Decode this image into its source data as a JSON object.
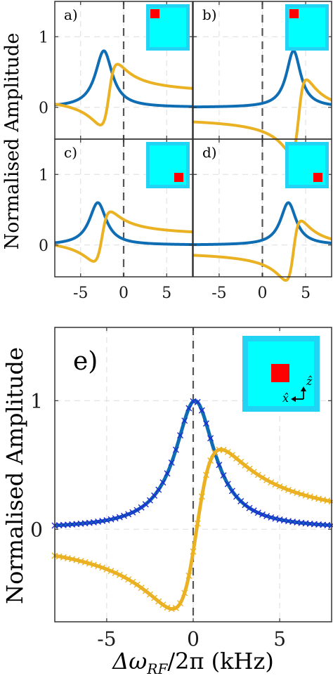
{
  "figure": {
    "ylabel": "Normalised Amplitude",
    "xlabel_main": "Δω",
    "xlabel_sub": "RF",
    "xlabel_rest": "/2π (kHz)",
    "axis_symbols": {
      "x": "x̂",
      "z": "ẑ"
    }
  },
  "colors": {
    "blue": "#0f6db3",
    "yellow": "#eab223",
    "dark_blue": "#1f2bd1",
    "cyan_outer": "#21d4f3",
    "cyan_inner": "#00ffff",
    "red": "#ff0000",
    "grid": "#dddddd",
    "zero_line": "#555555"
  },
  "chart_data": [
    {
      "panel": "a)",
      "type": "line",
      "xlim": [
        -8,
        8
      ],
      "ylim": [
        -0.45,
        1.5
      ],
      "xticks": [
        -5,
        0,
        5
      ],
      "yticks": [
        0,
        1
      ],
      "xtick_labels": [],
      "ytick_labels": [
        "0",
        "1"
      ],
      "inset": "red square top-right",
      "series": [
        {
          "shape": "absorptive",
          "center": -2.3,
          "width": 1.2,
          "amp": 0.8,
          "color": "blue"
        },
        {
          "shape": "dispersive",
          "center": -1.7,
          "width": 1.0,
          "amp": 0.43,
          "offset": 0.18,
          "color": "yellow"
        }
      ]
    },
    {
      "panel": "b)",
      "type": "line",
      "xlim": [
        -8,
        8
      ],
      "ylim": [
        -0.45,
        1.5
      ],
      "xticks": [
        -5,
        0,
        5
      ],
      "yticks": [
        0,
        1
      ],
      "xtick_labels": [],
      "ytick_labels": [],
      "inset": "red square top-right",
      "series": [
        {
          "shape": "absorptive",
          "center": 3.6,
          "width": 1.0,
          "amp": 0.8,
          "color": "blue"
        },
        {
          "shape": "dispersive",
          "center": 4.2,
          "width": 0.9,
          "amp": 0.52,
          "offset": -0.13,
          "color": "yellow"
        }
      ]
    },
    {
      "panel": "c)",
      "type": "line",
      "xlim": [
        -8,
        8
      ],
      "ylim": [
        -0.45,
        1.5
      ],
      "xticks": [
        -5,
        0,
        5
      ],
      "yticks": [
        0,
        1
      ],
      "xtick_labels": [
        "-5",
        "0",
        "5"
      ],
      "ytick_labels": [
        "0",
        "1"
      ],
      "inset": "red square bottom-right",
      "series": [
        {
          "shape": "absorptive",
          "center": -3.0,
          "width": 1.2,
          "amp": 0.6,
          "color": "blue"
        },
        {
          "shape": "dispersive",
          "center": -2.5,
          "width": 1.0,
          "amp": 0.35,
          "offset": 0.12,
          "color": "yellow"
        }
      ]
    },
    {
      "panel": "d)",
      "type": "line",
      "xlim": [
        -8,
        8
      ],
      "ylim": [
        -0.45,
        1.5
      ],
      "xticks": [
        -5,
        0,
        5
      ],
      "yticks": [
        0,
        1
      ],
      "xtick_labels": [
        "-5",
        "0",
        "5"
      ],
      "ytick_labels": [],
      "inset": "red square bottom-right",
      "series": [
        {
          "shape": "absorptive",
          "center": 3.0,
          "width": 1.1,
          "amp": 0.6,
          "color": "blue"
        },
        {
          "shape": "dispersive",
          "center": 3.6,
          "width": 0.9,
          "amp": 0.42,
          "offset": -0.08,
          "color": "yellow"
        }
      ]
    },
    {
      "panel": "e)",
      "type": "line+scatter",
      "xlim": [
        -8,
        8
      ],
      "ylim": [
        -0.72,
        1.57
      ],
      "xticks": [
        -5,
        0,
        5
      ],
      "yticks": [
        0,
        1
      ],
      "xtick_labels": [
        "-5",
        "0",
        "5"
      ],
      "ytick_labels": [
        "0",
        "1"
      ],
      "inset": "red square center-right with x̂ and ẑ axis arrows",
      "series": [
        {
          "shape": "absorptive",
          "center": 0.1,
          "width": 1.4,
          "amp": 1.0,
          "color": "blue",
          "fit_line": true
        },
        {
          "shape": "absorptive",
          "center": 0.1,
          "width": 1.4,
          "amp": 1.0,
          "color": "dark_blue",
          "markers": "x"
        },
        {
          "shape": "dispersive",
          "center": 0.2,
          "width": 1.4,
          "amp": 0.62,
          "offset": 0.0,
          "color": "yellow",
          "fit_line": true
        },
        {
          "shape": "dispersive",
          "center": 0.2,
          "width": 1.4,
          "amp": 0.62,
          "offset": 0.0,
          "color": "yellow",
          "markers": "x"
        }
      ]
    }
  ]
}
